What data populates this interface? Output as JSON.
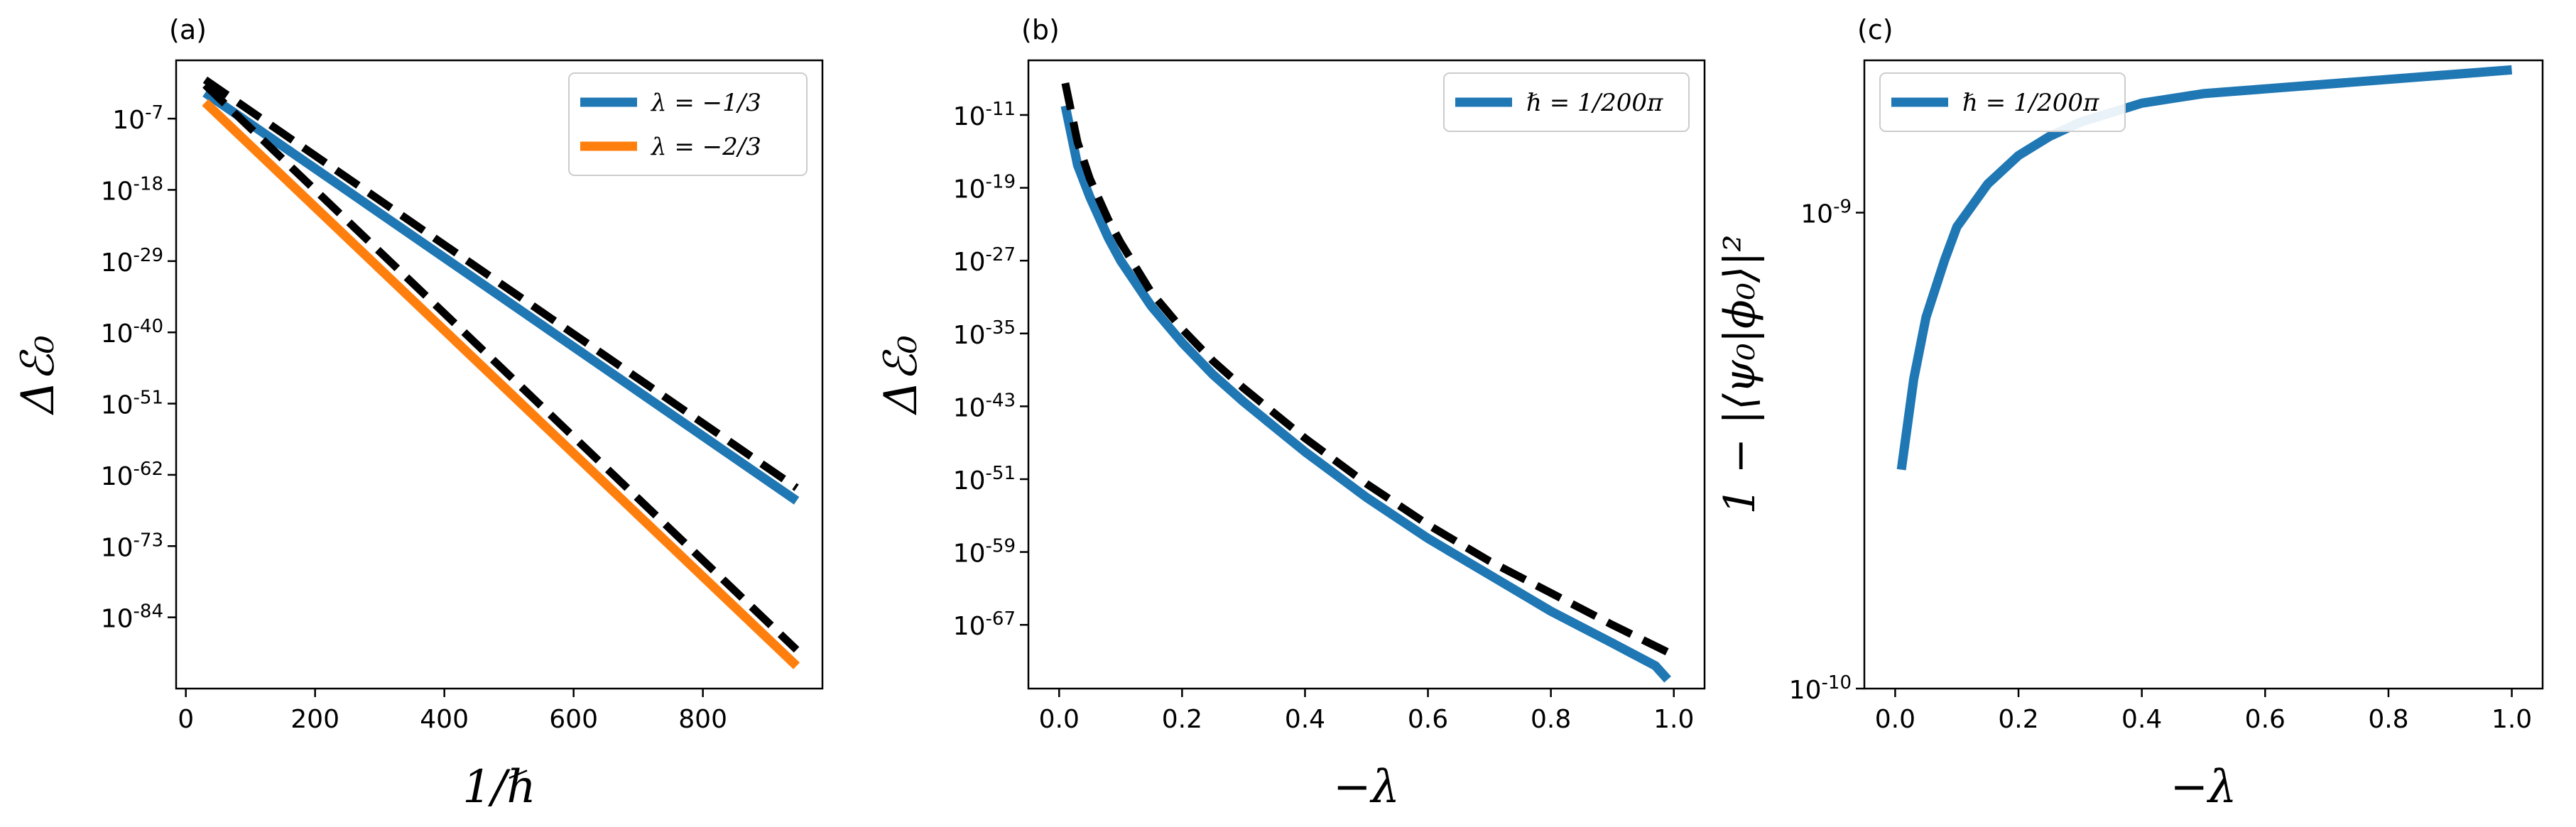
{
  "chart_data": [
    {
      "panel": "(a)",
      "type": "line",
      "xlabel": "1/ℏ",
      "ylabel": "Δℰ₀",
      "xlim": [
        -15,
        985
      ],
      "ylim_log10": [
        -95,
        2
      ],
      "yscale": "log",
      "xticks": [
        0,
        200,
        400,
        600,
        800
      ],
      "yticks": [
        {
          "exp": -7,
          "label": "10",
          "sup": "-7"
        },
        {
          "exp": -18,
          "label": "10",
          "sup": "-18"
        },
        {
          "exp": -29,
          "label": "10",
          "sup": "-29"
        },
        {
          "exp": -40,
          "label": "10",
          "sup": "-40"
        },
        {
          "exp": -51,
          "label": "10",
          "sup": "-51"
        },
        {
          "exp": -62,
          "label": "10",
          "sup": "-62"
        },
        {
          "exp": -73,
          "label": "10",
          "sup": "-73"
        },
        {
          "exp": -84,
          "label": "10",
          "sup": "-84"
        }
      ],
      "legend_position": "top-right",
      "series": [
        {
          "name": "λ = −1/3",
          "color": "#1f77b4",
          "style": "solid",
          "x": [
            30,
            945
          ],
          "log10y": [
            -3,
            -66
          ]
        },
        {
          "name": "λ = −2/3",
          "color": "#ff7f0e",
          "style": "solid",
          "x": [
            30,
            945
          ],
          "log10y": [
            -4.5,
            -91.5
          ]
        },
        {
          "name": "",
          "color": "#000000",
          "style": "dashed",
          "x": [
            30,
            945
          ],
          "log10y": [
            -1,
            -64
          ]
        },
        {
          "name": "",
          "color": "#000000",
          "style": "dashed",
          "x": [
            30,
            945
          ],
          "log10y": [
            -1.8,
            -89
          ]
        }
      ]
    },
    {
      "panel": "(b)",
      "type": "line",
      "xlabel": "−λ",
      "ylabel": "Δℰ₀",
      "xlim": [
        -0.05,
        1.05
      ],
      "ylim_log10": [
        -74,
        -5
      ],
      "yscale": "log",
      "xticks": [
        0.0,
        0.2,
        0.4,
        0.6,
        0.8,
        1.0
      ],
      "yticks": [
        {
          "exp": -11,
          "label": "10",
          "sup": "-11"
        },
        {
          "exp": -19,
          "label": "10",
          "sup": "-19"
        },
        {
          "exp": -27,
          "label": "10",
          "sup": "-27"
        },
        {
          "exp": -35,
          "label": "10",
          "sup": "-35"
        },
        {
          "exp": -43,
          "label": "10",
          "sup": "-43"
        },
        {
          "exp": -51,
          "label": "10",
          "sup": "-51"
        },
        {
          "exp": -59,
          "label": "10",
          "sup": "-59"
        },
        {
          "exp": -67,
          "label": "10",
          "sup": "-67"
        }
      ],
      "legend_position": "top-right",
      "series": [
        {
          "name": "ℏ = 1/200π",
          "color": "#1f77b4",
          "style": "solid",
          "x": [
            0.01,
            0.03,
            0.05,
            0.08,
            0.1,
            0.15,
            0.2,
            0.25,
            0.3,
            0.4,
            0.5,
            0.6,
            0.7,
            0.8,
            0.9,
            0.97,
            0.99
          ],
          "log10y": [
            -10,
            -16.5,
            -20,
            -24.5,
            -27,
            -32,
            -36,
            -39.5,
            -42.5,
            -48,
            -53,
            -57.5,
            -61.5,
            -65.5,
            -69,
            -71.5,
            -73
          ]
        },
        {
          "name": "",
          "color": "#000000",
          "style": "dashed",
          "x": [
            0.01,
            0.03,
            0.05,
            0.08,
            0.1,
            0.15,
            0.2,
            0.25,
            0.3,
            0.4,
            0.5,
            0.6,
            0.7,
            0.8,
            0.9,
            0.99
          ],
          "log10y": [
            -7.5,
            -14,
            -18,
            -22.5,
            -25,
            -30.5,
            -34.5,
            -38,
            -41,
            -46.5,
            -51.5,
            -56,
            -60,
            -63.5,
            -67,
            -70
          ]
        }
      ]
    },
    {
      "panel": "(c)",
      "type": "line",
      "xlabel": "−λ",
      "ylabel": "1 − |⟨ψ₀|ϕ₀⟩|²",
      "xlim": [
        -0.05,
        1.05
      ],
      "ylim_log10": [
        -10,
        -8.68
      ],
      "yscale": "log",
      "xticks": [
        0.0,
        0.2,
        0.4,
        0.6,
        0.8,
        1.0
      ],
      "yticks": [
        {
          "exp": -9,
          "label": "10",
          "sup": "-9"
        },
        {
          "exp": -10,
          "label": "10",
          "sup": "-10"
        }
      ],
      "legend_position": "top-left",
      "series": [
        {
          "name": "ℏ = 1/200π",
          "color": "#1f77b4",
          "style": "solid",
          "x": [
            0.01,
            0.03,
            0.05,
            0.08,
            0.1,
            0.15,
            0.2,
            0.25,
            0.3,
            0.4,
            0.5,
            0.6,
            0.7,
            0.8,
            0.9,
            1.0
          ],
          "log10y": [
            -9.54,
            -9.35,
            -9.22,
            -9.1,
            -9.03,
            -8.94,
            -8.88,
            -8.84,
            -8.81,
            -8.77,
            -8.75,
            -8.74,
            -8.73,
            -8.72,
            -8.71,
            -8.7
          ]
        }
      ]
    }
  ]
}
